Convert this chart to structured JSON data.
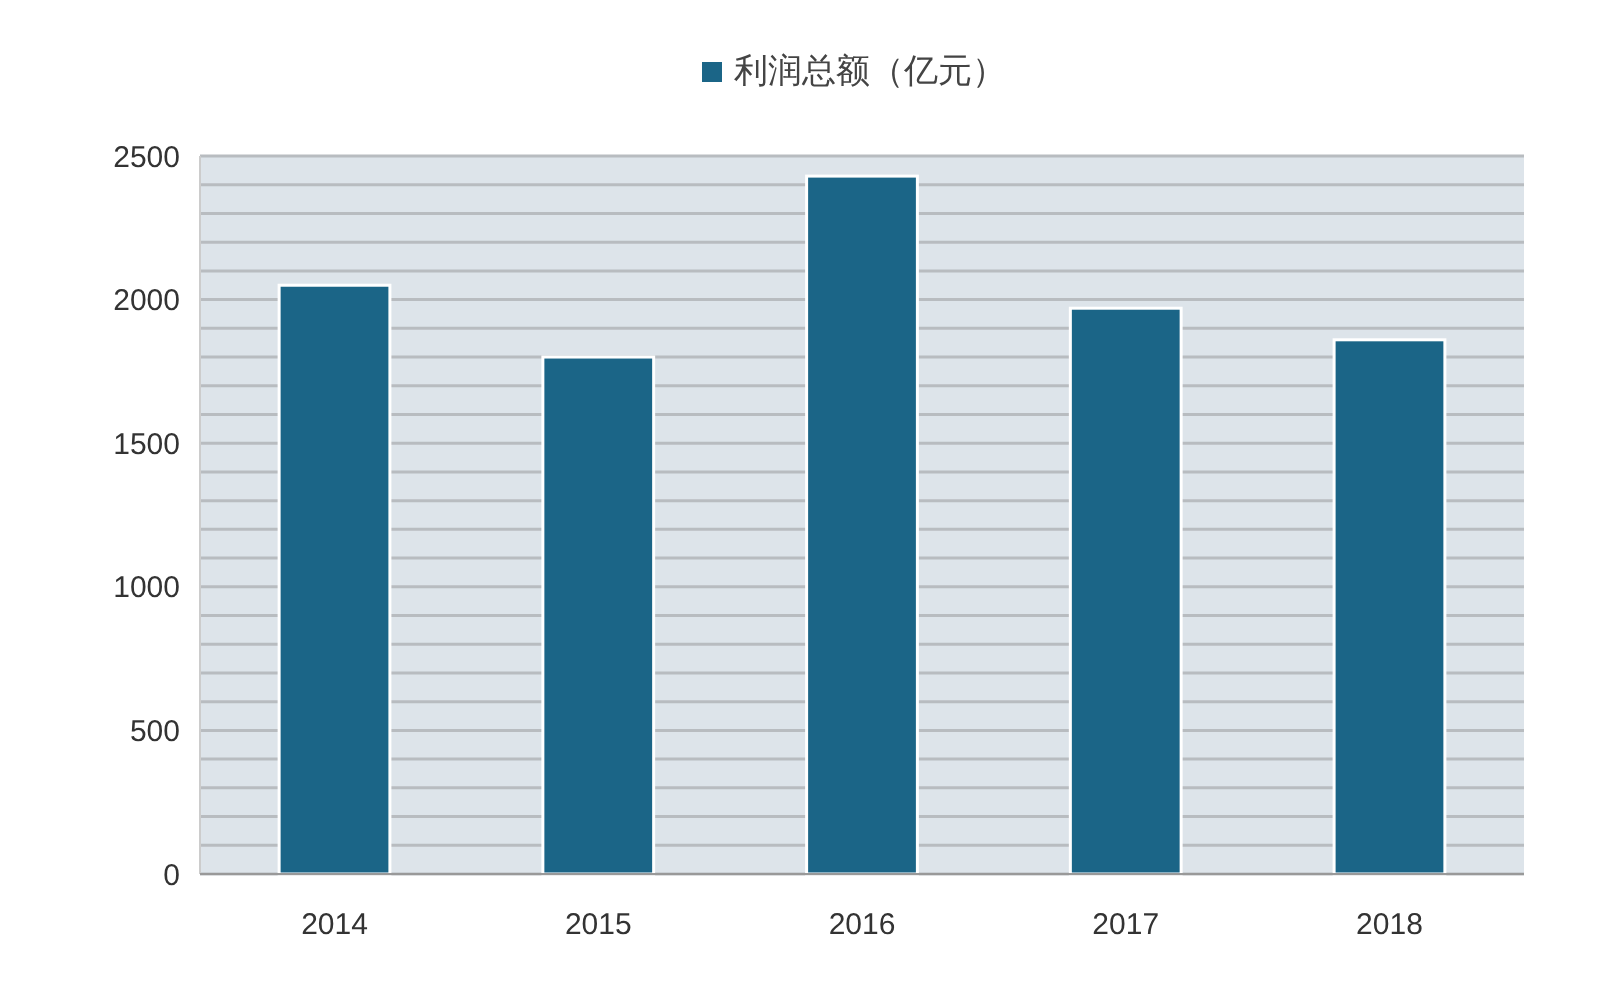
{
  "chart_data": {
    "type": "bar",
    "categories": [
      "2014",
      "2015",
      "2016",
      "2017",
      "2018"
    ],
    "series": [
      {
        "name": "利润总额（亿元）",
        "color": "#1b6587",
        "values": [
          2050,
          1800,
          2430,
          1970,
          1860
        ]
      }
    ],
    "ylim": [
      0,
      2500
    ],
    "yticks": [
      0,
      {
        "value": 100,
        "label": null
      },
      {
        "value": 200,
        "label": null
      },
      {
        "value": 300,
        "label": null
      },
      {
        "value": 400,
        "label": null
      },
      500,
      {
        "value": 600,
        "label": null
      },
      {
        "value": 700,
        "label": null
      },
      {
        "value": 800,
        "label": null
      },
      {
        "value": 900,
        "label": null
      },
      1000,
      {
        "value": 1100,
        "label": null
      },
      {
        "value": 1200,
        "label": null
      },
      {
        "value": 1300,
        "label": null
      },
      {
        "value": 1400,
        "label": null
      },
      1500,
      {
        "value": 1600,
        "label": null
      },
      {
        "value": 1700,
        "label": null
      },
      {
        "value": 1800,
        "label": null
      },
      {
        "value": 1900,
        "label": null
      },
      2000,
      {
        "value": 2100,
        "label": null
      },
      {
        "value": 2200,
        "label": null
      },
      {
        "value": 2300,
        "label": null
      },
      {
        "value": 2400,
        "label": null
      },
      2500
    ],
    "grid": "y",
    "legend": "top"
  }
}
